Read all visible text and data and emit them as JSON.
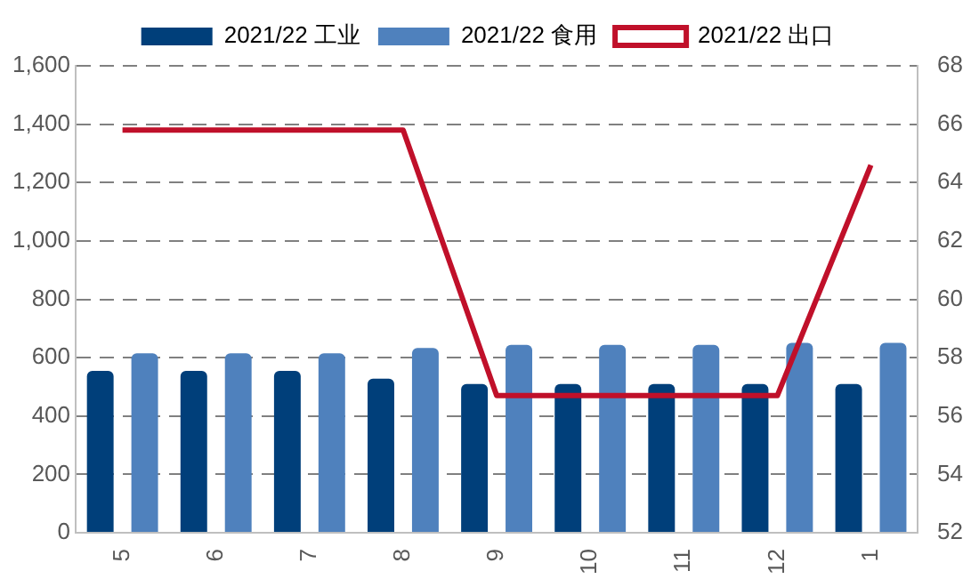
{
  "chart_data": {
    "type": "bar",
    "categories": [
      "5",
      "6",
      "7",
      "8",
      "9",
      "10",
      "11",
      "12",
      "1"
    ],
    "series": [
      {
        "name": "2021/22 工业",
        "color": "#003f7a",
        "values": [
          555,
          555,
          555,
          528,
          510,
          510,
          510,
          510,
          510
        ]
      },
      {
        "name": "2021/22 食用",
        "color": "#4f81bd",
        "values": [
          615,
          615,
          615,
          633,
          644,
          644,
          644,
          651,
          651
        ]
      },
      {
        "name": "2021/22 出口",
        "color": "#c0102a",
        "type": "line",
        "axis": "y2",
        "marker": "none",
        "values": [
          65.8,
          65.8,
          65.8,
          65.8,
          56.7,
          56.7,
          56.7,
          56.7,
          64.6
        ]
      }
    ],
    "ylim": [
      0,
      1600
    ],
    "yticks": [
      {
        "value": 0,
        "label": "0"
      },
      {
        "value": 200,
        "label": "200"
      },
      {
        "value": 400,
        "label": "400"
      },
      {
        "value": 600,
        "label": "600"
      },
      {
        "value": 800,
        "label": "800"
      },
      {
        "value": 1000,
        "label": "1,000"
      },
      {
        "value": 1200,
        "label": "1,200"
      },
      {
        "value": 1400,
        "label": "1,400"
      },
      {
        "value": 1600,
        "label": "1,600"
      }
    ],
    "y2lim": [
      52,
      68
    ],
    "y2ticks": [
      52,
      54,
      56,
      58,
      60,
      62,
      64,
      66,
      68
    ],
    "grid": "y",
    "legend": "top"
  }
}
